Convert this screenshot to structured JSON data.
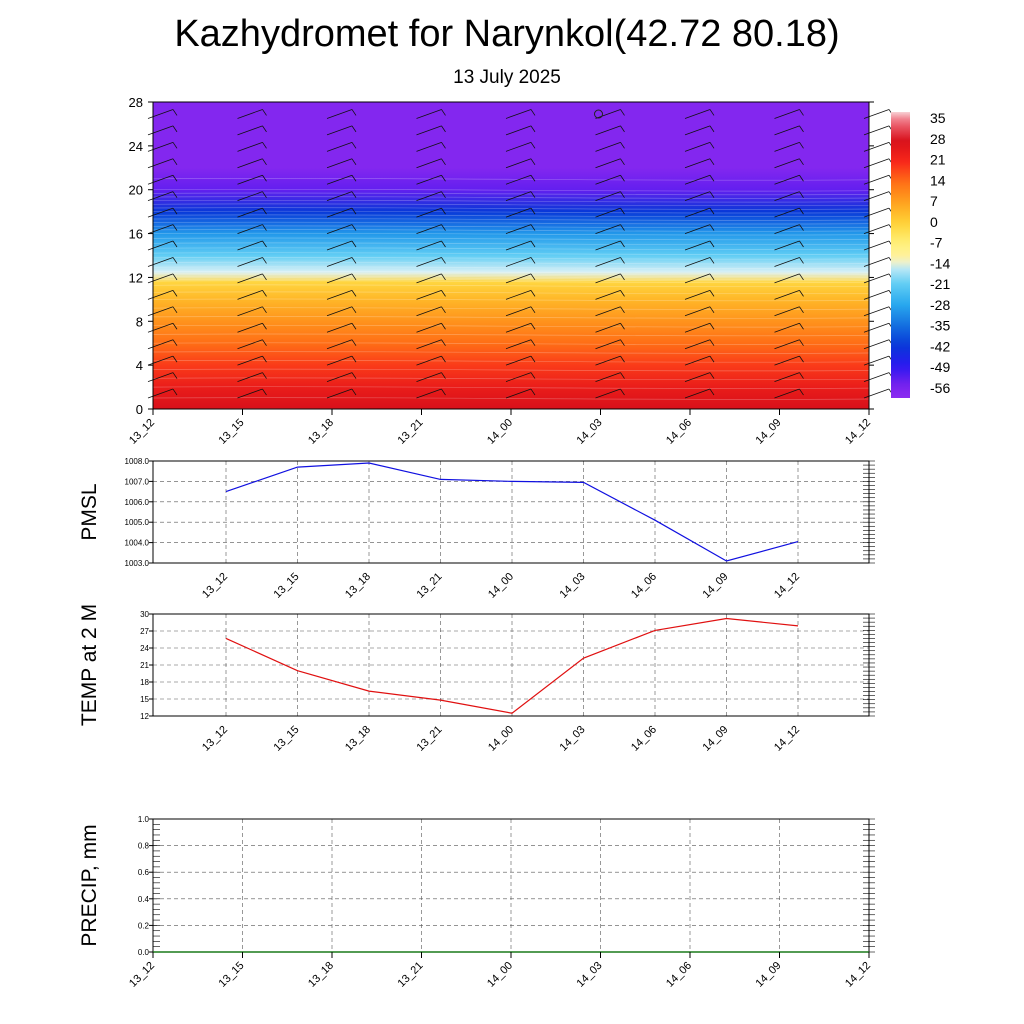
{
  "header": {
    "title": "Kazhydromet for Narynkol(42.72 80.18)",
    "subtitle": "13 July 2025"
  },
  "chart_data": [
    {
      "id": "cross_section",
      "type": "heatmap",
      "title": "",
      "xlabel": "",
      "ylabel": "",
      "x_tick_labels": [
        "13_12",
        "13_15",
        "13_18",
        "13_21",
        "14_00",
        "14_03",
        "14_06",
        "14_09",
        "14_12"
      ],
      "y_ticks": [
        0,
        4,
        8,
        12,
        16,
        20,
        24,
        28
      ],
      "ylim": [
        0,
        28
      ],
      "colorbar": {
        "ticks": [
          35,
          28,
          21,
          14,
          7,
          0,
          -7,
          -14,
          -21,
          -28,
          -35,
          -42,
          -49,
          -56
        ],
        "range": [
          -60,
          38
        ]
      },
      "temperature_profile": [
        {
          "level": 0,
          "value": 28
        },
        {
          "level": 2,
          "value": 24
        },
        {
          "level": 4,
          "value": 19
        },
        {
          "level": 6,
          "value": 14
        },
        {
          "level": 8,
          "value": 9
        },
        {
          "level": 10,
          "value": 4
        },
        {
          "level": 11.6,
          "value": -1
        },
        {
          "level": 12.5,
          "value": -14
        },
        {
          "level": 14,
          "value": -21
        },
        {
          "level": 16,
          "value": -30
        },
        {
          "level": 18,
          "value": -42
        },
        {
          "level": 20,
          "value": -54
        },
        {
          "level": 22,
          "value": -58
        },
        {
          "level": 28,
          "value": -58
        }
      ],
      "wind_barbs": true
    },
    {
      "id": "pmsl",
      "type": "line",
      "ylabel": "PMSL",
      "categories": [
        "13_12",
        "13_15",
        "13_18",
        "13_21",
        "14_00",
        "14_03",
        "14_06",
        "14_09",
        "14_12"
      ],
      "series": [
        {
          "values": [
            1006.5,
            1007.7,
            1007.9,
            1007.1,
            1007.0,
            1006.95,
            1005.1,
            1003.1,
            1004.05
          ]
        }
      ],
      "ylim": [
        1003.0,
        1008.0
      ],
      "y_ticks": [
        "1003.0",
        "1004.0",
        "1005.0",
        "1006.0",
        "1007.0",
        "1008.0"
      ],
      "line_color": "#1010e0",
      "grid": true
    },
    {
      "id": "temp2m",
      "type": "line",
      "ylabel": "TEMP at 2 M",
      "categories": [
        "13_12",
        "13_15",
        "13_18",
        "13_21",
        "14_00",
        "14_03",
        "14_06",
        "14_09",
        "14_12"
      ],
      "series": [
        {
          "values": [
            25.7,
            20.0,
            16.4,
            14.8,
            12.5,
            22.2,
            27.1,
            29.2,
            27.9
          ]
        }
      ],
      "ylim": [
        12,
        30
      ],
      "y_ticks": [
        "12",
        "15",
        "18",
        "21",
        "24",
        "27",
        "30"
      ],
      "line_color": "#e01010",
      "grid": true
    },
    {
      "id": "precip",
      "type": "line",
      "ylabel": "PRECIP, mm",
      "x_tick_labels": [
        "13_12",
        "13_15",
        "13_18",
        "13_21",
        "14_00",
        "14_03",
        "14_06",
        "14_09",
        "14_12"
      ],
      "series": [
        {
          "values": [
            0,
            0,
            0,
            0,
            0,
            0,
            0,
            0,
            0
          ]
        }
      ],
      "ylim": [
        0,
        1.0
      ],
      "y_ticks": [
        "0.0",
        "0.2",
        "0.4",
        "0.6",
        "0.8",
        "1.0"
      ],
      "line_color": "#1a7a1a",
      "grid": true
    }
  ]
}
